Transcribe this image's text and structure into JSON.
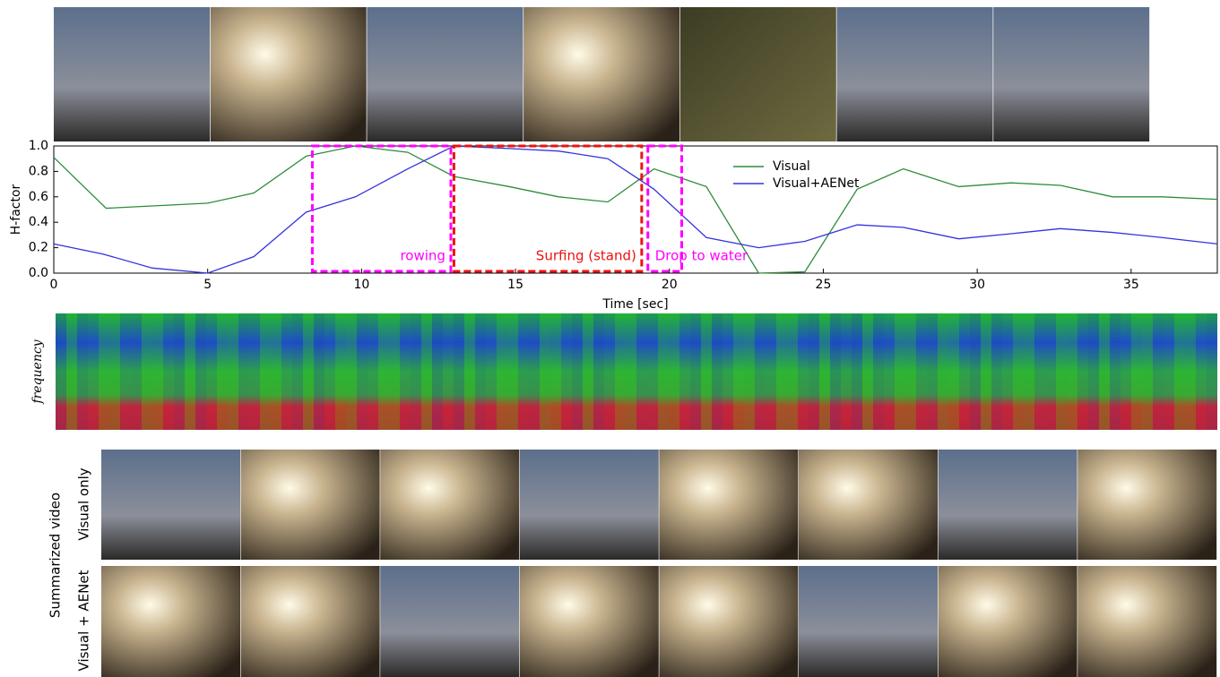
{
  "chart_data": {
    "type": "line",
    "xlabel": "Time [sec]",
    "ylabel": "H-factor",
    "xlim": [
      0,
      37.8
    ],
    "ylim": [
      0,
      1.0
    ],
    "xticks": [
      0,
      5,
      10,
      15,
      20,
      25,
      30,
      35
    ],
    "yticks": [
      {
        "value": 0,
        "label": "0.0"
      },
      {
        "value": 0.2,
        "label": "0.2"
      },
      {
        "value": 0.4,
        "label": "0.4"
      },
      {
        "value": 0.6,
        "label": "0.6"
      },
      {
        "value": 0.8,
        "label": "0.8"
      },
      {
        "value": 1.0,
        "label": "1.0"
      }
    ],
    "legend": "upper center",
    "series": [
      {
        "name": "Visual",
        "color": "#2e8b3a",
        "x": [
          0,
          1.7,
          5,
          6.5,
          8.2,
          9.8,
          11.5,
          13,
          14.8,
          16.4,
          18,
          19.5,
          21.2,
          22.9,
          24.4,
          26.1,
          27.6,
          29.4,
          31.1,
          32.7,
          34.4,
          36,
          37.8
        ],
        "values": [
          0.91,
          0.51,
          0.55,
          0.63,
          0.92,
          1.0,
          0.95,
          0.76,
          0.68,
          0.6,
          0.56,
          0.82,
          0.68,
          0.0,
          0.01,
          0.66,
          0.82,
          0.68,
          0.71,
          0.69,
          0.6,
          0.6,
          0.58
        ]
      },
      {
        "name": "Visual+AENet",
        "color": "#3333dd",
        "x": [
          0,
          1.6,
          3.2,
          5,
          6.5,
          8.2,
          9.8,
          11.5,
          13,
          14.8,
          16.4,
          18,
          19.5,
          21.2,
          22.9,
          24.4,
          26.1,
          27.6,
          29.4,
          31.1,
          32.7,
          34.4,
          36,
          37.8
        ],
        "values": [
          0.23,
          0.15,
          0.04,
          0.0,
          0.13,
          0.48,
          0.6,
          0.82,
          1.0,
          0.98,
          0.96,
          0.9,
          0.66,
          0.28,
          0.2,
          0.25,
          0.38,
          0.36,
          0.27,
          0.31,
          0.35,
          0.32,
          0.28,
          0.23
        ]
      }
    ],
    "annotations": [
      {
        "text": "rowing",
        "color": "#ff00ff",
        "x": [
          8.4,
          12.9
        ]
      },
      {
        "text": "Surfing (stand)",
        "color": "#ee1111",
        "x": [
          13.0,
          19.1
        ]
      },
      {
        "text": "Drop to water",
        "color": "#ff00ff",
        "x": [
          19.3,
          20.4
        ]
      }
    ]
  },
  "spectrogram_label": "frequency",
  "summary": {
    "title": "Summarized video",
    "rows": [
      "Visual only",
      "Visual + AENet"
    ]
  }
}
